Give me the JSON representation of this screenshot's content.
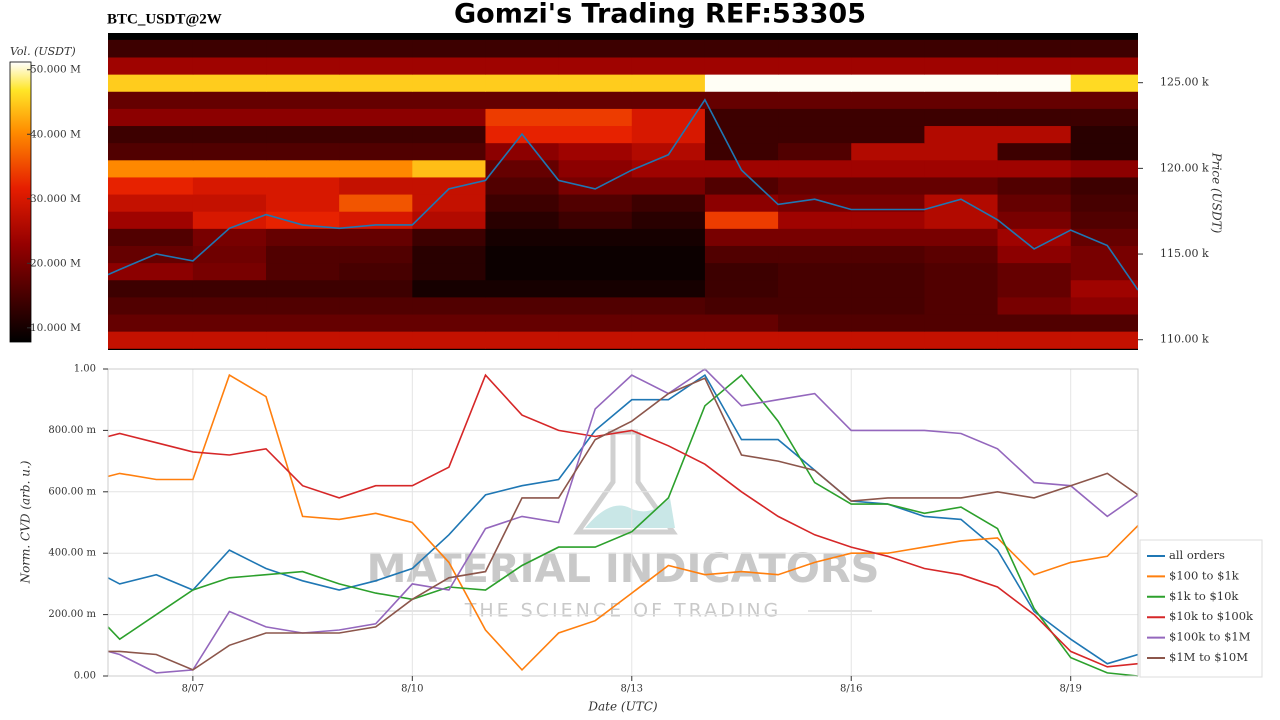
{
  "chart_data": [
    {
      "type": "heatmap",
      "title": "Gomzi's Trading REF:53305",
      "subtitle": "BTC_USDT@2W",
      "ylabel": "Price (USDT)",
      "xlim": [
        5.84,
        19.92
      ],
      "ylim": [
        109400,
        127900
      ],
      "yticks": [
        {
          "value": 110000,
          "label": "110.00 k"
        },
        {
          "value": 115000,
          "label": "115.00 k"
        },
        {
          "value": 120000,
          "label": "120.00 k"
        },
        {
          "value": 125000,
          "label": "125.00 k"
        }
      ],
      "x": [
        5.84,
        6.0,
        6.5,
        7,
        7.5,
        8,
        8.5,
        9,
        9.5,
        10,
        10.5,
        11,
        11.5,
        12,
        12.5,
        13,
        13.5,
        14,
        14.5,
        15,
        15.5,
        16,
        16.5,
        17,
        17.5,
        18,
        18.5,
        19,
        19.5,
        19.92
      ],
      "line": {
        "color": "#1f77b4",
        "values": [
          113800,
          114100,
          115000,
          114600,
          116500,
          117300,
          116700,
          116500,
          116700,
          116700,
          118800,
          119300,
          122000,
          119300,
          118800,
          119900,
          120800,
          124000,
          119900,
          117900,
          118200,
          117600,
          117600,
          117600,
          118200,
          117000,
          115300,
          116400,
          115500,
          112900
        ]
      },
      "heatmap": {
        "colormap": "hot",
        "clabel": "Vol. (USDT)",
        "clim": [
          7800000.0,
          51200000.0
        ],
        "cticks": [
          {
            "value": 10000000.0,
            "label": "10.000 M"
          },
          {
            "value": 20000000.0,
            "label": "20.000 M"
          },
          {
            "value": 30000000.0,
            "label": "30.000 M"
          },
          {
            "value": 40000000.0,
            "label": "40.000 M"
          },
          {
            "value": 50000000.0,
            "label": "50.000 M"
          }
        ],
        "x_edges": [
          5.84,
          7,
          8,
          9,
          10,
          11,
          12,
          13,
          14,
          15,
          16,
          17,
          18,
          19,
          19.92
        ],
        "y_edges": [
          109500,
          110500,
          111500,
          112500,
          113500,
          114500,
          115500,
          116500,
          117500,
          118500,
          119500,
          120500,
          121500,
          122500,
          123500,
          124500,
          125500,
          126500,
          127500
        ],
        "values": [
          [
            28000000.0,
            28000000.0,
            28000000.0,
            28000000.0,
            28000000.0,
            28000000.0,
            28000000.0,
            28000000.0,
            28000000.0,
            28000000.0,
            28000000.0,
            28000000.0,
            28000000.0,
            28000000.0
          ],
          [
            18000000.0,
            18000000.0,
            18000000.0,
            18000000.0,
            18000000.0,
            18000000.0,
            18000000.0,
            18000000.0,
            18000000.0,
            16000000.0,
            16000000.0,
            16000000.0,
            16000000.0,
            16000000.0
          ],
          [
            16000000.0,
            16000000.0,
            16000000.0,
            16000000.0,
            16000000.0,
            16000000.0,
            16000000.0,
            16000000.0,
            15000000.0,
            15000000.0,
            15000000.0,
            16000000.0,
            20000000.0,
            22000000.0
          ],
          [
            14000000.0,
            14000000.0,
            14000000.0,
            14000000.0,
            10000000.0,
            10000000.0,
            10000000.0,
            10000000.0,
            14000000.0,
            15000000.0,
            15000000.0,
            16000000.0,
            18000000.0,
            24000000.0
          ],
          [
            22000000.0,
            20000000.0,
            16000000.0,
            15000000.0,
            12000000.0,
            9000000.0,
            9000000.0,
            9000000.0,
            14000000.0,
            15000000.0,
            15000000.0,
            16000000.0,
            18000000.0,
            20000000.0
          ],
          [
            18000000.0,
            19000000.0,
            16000000.0,
            16000000.0,
            12000000.0,
            9000000.0,
            9000000.0,
            9000000.0,
            16000000.0,
            16000000.0,
            16000000.0,
            17000000.0,
            22000000.0,
            20000000.0
          ],
          [
            16000000.0,
            20000000.0,
            18000000.0,
            18000000.0,
            14000000.0,
            10000000.0,
            10000000.0,
            10000000.0,
            20000000.0,
            20000000.0,
            20000000.0,
            20000000.0,
            24000000.0,
            18000000.0
          ],
          [
            24000000.0,
            30000000.0,
            32000000.0,
            30000000.0,
            26000000.0,
            12000000.0,
            14000000.0,
            12000000.0,
            34000000.0,
            24000000.0,
            24000000.0,
            26000000.0,
            20000000.0,
            16000000.0
          ],
          [
            28000000.0,
            28000000.0,
            30000000.0,
            36000000.0,
            28000000.0,
            14000000.0,
            16000000.0,
            14000000.0,
            22000000.0,
            20000000.0,
            20000000.0,
            26000000.0,
            18000000.0,
            15000000.0
          ],
          [
            32000000.0,
            30000000.0,
            30000000.0,
            28000000.0,
            28000000.0,
            16000000.0,
            20000000.0,
            20000000.0,
            16000000.0,
            18000000.0,
            18000000.0,
            18000000.0,
            16000000.0,
            14000000.0
          ],
          [
            40000000.0,
            40000000.0,
            40000000.0,
            40000000.0,
            44000000.0,
            18000000.0,
            22000000.0,
            24000000.0,
            24000000.0,
            24000000.0,
            24000000.0,
            24000000.0,
            24000000.0,
            22000000.0
          ],
          [
            16000000.0,
            16000000.0,
            16000000.0,
            16000000.0,
            16000000.0,
            22000000.0,
            24000000.0,
            26000000.0,
            14000000.0,
            16000000.0,
            26000000.0,
            26000000.0,
            14000000.0,
            12000000.0
          ],
          [
            14000000.0,
            14000000.0,
            14000000.0,
            14000000.0,
            14000000.0,
            32000000.0,
            32000000.0,
            30000000.0,
            14000000.0,
            14000000.0,
            14000000.0,
            26000000.0,
            26000000.0,
            12000000.0
          ],
          [
            22000000.0,
            22000000.0,
            22000000.0,
            22000000.0,
            22000000.0,
            34000000.0,
            34000000.0,
            30000000.0,
            14000000.0,
            14000000.0,
            14000000.0,
            14000000.0,
            14000000.0,
            14000000.0
          ],
          [
            18000000.0,
            18000000.0,
            18000000.0,
            18000000.0,
            18000000.0,
            18000000.0,
            18000000.0,
            18000000.0,
            18000000.0,
            18000000.0,
            18000000.0,
            18000000.0,
            18000000.0,
            18000000.0
          ],
          [
            45000000.0,
            45000000.0,
            45000000.0,
            45000000.0,
            45000000.0,
            45000000.0,
            45000000.0,
            45000000.0,
            51000000.0,
            51000000.0,
            51000000.0,
            51000000.0,
            51000000.0,
            46000000.0
          ],
          [
            24000000.0,
            24000000.0,
            24000000.0,
            24000000.0,
            24000000.0,
            24000000.0,
            24000000.0,
            24000000.0,
            24000000.0,
            24000000.0,
            24000000.0,
            24000000.0,
            24000000.0,
            24000000.0
          ],
          [
            14000000.0,
            14000000.0,
            14000000.0,
            14000000.0,
            14000000.0,
            14000000.0,
            14000000.0,
            14000000.0,
            14000000.0,
            14000000.0,
            14000000.0,
            14000000.0,
            14000000.0,
            14000000.0
          ]
        ]
      }
    },
    {
      "type": "line",
      "xlabel": "Date (UTC)",
      "ylabel": "Norm. CVD (arb. u.)",
      "grid": true,
      "legend": "lower right",
      "xlim": [
        5.84,
        19.92
      ],
      "ylim": [
        0,
        1
      ],
      "xticks": [
        {
          "value": 7,
          "label": "8/07"
        },
        {
          "value": 10,
          "label": "8/10"
        },
        {
          "value": 13,
          "label": "8/13"
        },
        {
          "value": 16,
          "label": "8/16"
        },
        {
          "value": 19,
          "label": "8/19"
        }
      ],
      "yticks": [
        {
          "value": 0,
          "label": "0.00"
        },
        {
          "value": 0.2,
          "label": "200.00 m"
        },
        {
          "value": 0.4,
          "label": "400.00 m"
        },
        {
          "value": 0.6,
          "label": "600.00 m"
        },
        {
          "value": 0.8,
          "label": "800.00 m"
        },
        {
          "value": 1,
          "label": "1.00"
        }
      ],
      "x": [
        5.84,
        6.0,
        6.5,
        7,
        7.5,
        8,
        8.5,
        9,
        9.5,
        10,
        10.5,
        11,
        11.5,
        12,
        12.5,
        13,
        13.5,
        14,
        14.5,
        15,
        15.5,
        16,
        16.5,
        17,
        17.5,
        18,
        18.5,
        19,
        19.5,
        19.92
      ],
      "series": [
        {
          "name": "all orders",
          "color": "#1f77b4",
          "values": [
            0.32,
            0.3,
            0.33,
            0.28,
            0.41,
            0.35,
            0.31,
            0.28,
            0.31,
            0.35,
            0.46,
            0.59,
            0.62,
            0.64,
            0.8,
            0.9,
            0.9,
            0.98,
            0.77,
            0.77,
            0.67,
            0.57,
            0.56,
            0.52,
            0.51,
            0.41,
            0.21,
            0.12,
            0.04,
            0.07
          ]
        },
        {
          "name": "$100 to $1k",
          "color": "#ff7f0e",
          "values": [
            0.65,
            0.66,
            0.64,
            0.64,
            0.98,
            0.91,
            0.52,
            0.51,
            0.53,
            0.5,
            0.37,
            0.15,
            0.02,
            0.14,
            0.18,
            0.27,
            0.36,
            0.33,
            0.34,
            0.33,
            0.37,
            0.4,
            0.4,
            0.42,
            0.44,
            0.45,
            0.33,
            0.37,
            0.39,
            0.49
          ]
        },
        {
          "name": "$1k to $10k",
          "color": "#2ca02c",
          "values": [
            0.16,
            0.12,
            0.2,
            0.28,
            0.32,
            0.33,
            0.34,
            0.3,
            0.27,
            0.25,
            0.29,
            0.28,
            0.36,
            0.42,
            0.42,
            0.47,
            0.58,
            0.88,
            0.98,
            0.83,
            0.63,
            0.56,
            0.56,
            0.53,
            0.55,
            0.48,
            0.22,
            0.06,
            0.01,
            0.0
          ]
        },
        {
          "name": "$10k to $100k",
          "color": "#d62728",
          "values": [
            0.78,
            0.79,
            0.76,
            0.73,
            0.72,
            0.74,
            0.62,
            0.58,
            0.62,
            0.62,
            0.68,
            0.98,
            0.85,
            0.8,
            0.78,
            0.8,
            0.75,
            0.69,
            0.6,
            0.52,
            0.46,
            0.42,
            0.39,
            0.35,
            0.33,
            0.29,
            0.2,
            0.08,
            0.03,
            0.04
          ]
        },
        {
          "name": "$100k to $1M",
          "color": "#9467bd",
          "values": [
            0.08,
            0.07,
            0.01,
            0.02,
            0.21,
            0.16,
            0.14,
            0.15,
            0.17,
            0.3,
            0.28,
            0.48,
            0.52,
            0.5,
            0.87,
            0.98,
            0.92,
            1.0,
            0.88,
            0.9,
            0.92,
            0.8,
            0.8,
            0.8,
            0.79,
            0.74,
            0.63,
            0.62,
            0.52,
            0.59
          ]
        },
        {
          "name": "$1M to $10M",
          "color": "#8c564b",
          "values": [
            0.08,
            0.08,
            0.07,
            0.02,
            0.1,
            0.14,
            0.14,
            0.14,
            0.16,
            0.25,
            0.32,
            0.34,
            0.58,
            0.58,
            0.77,
            0.83,
            0.92,
            0.97,
            0.72,
            0.7,
            0.67,
            0.57,
            0.58,
            0.58,
            0.58,
            0.6,
            0.58,
            0.62,
            0.66,
            0.59
          ]
        }
      ]
    }
  ],
  "watermark": {
    "title": "MATERIAL INDICATORS",
    "subtitle": "THE SCIENCE OF TRADING"
  }
}
